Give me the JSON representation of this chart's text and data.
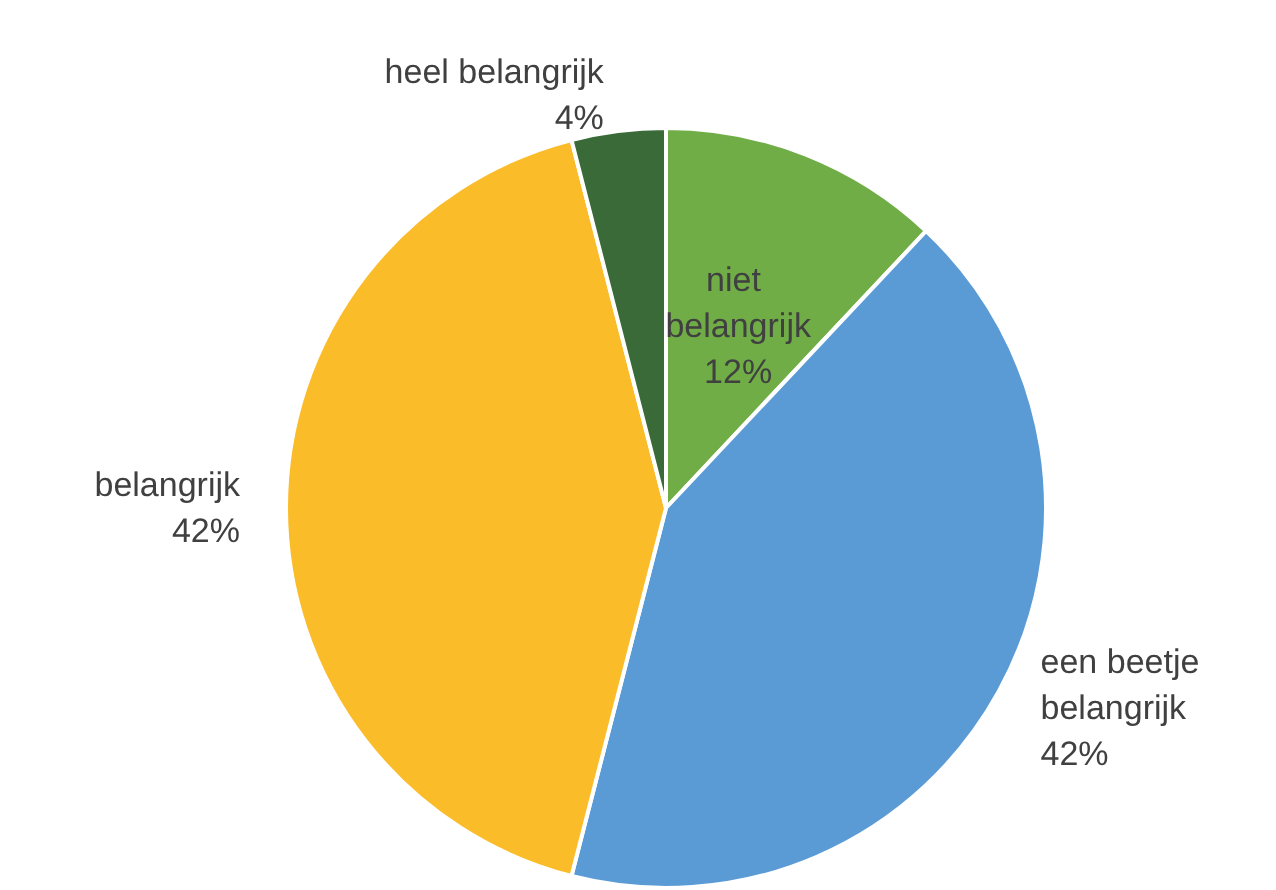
{
  "chart_data": {
    "type": "pie",
    "categories": [
      "niet belangrijk",
      "een beetje belangrijk",
      "belangrijk",
      "heel belangrijk"
    ],
    "values": [
      12,
      42,
      42,
      4
    ],
    "colors": [
      "#70ad47",
      "#5b9bd5",
      "#fbbc2a",
      "#3a6a38"
    ],
    "value_labels": [
      "12%",
      "42%",
      "42%",
      "4%"
    ],
    "legend": false
  }
}
